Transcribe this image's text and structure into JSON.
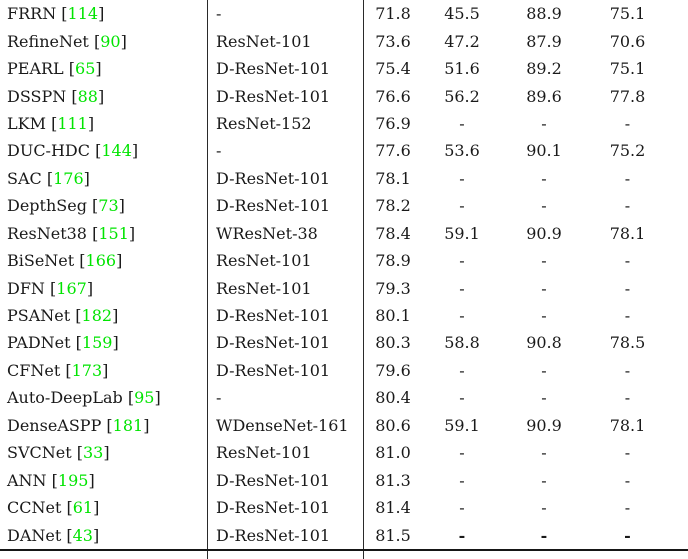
{
  "table": {
    "citation_open": "[",
    "citation_close": "]",
    "citation_color": "#00e400",
    "rule_color": "#161616",
    "rows": [
      {
        "method": "FRRN",
        "ref": "114",
        "backbone": "-",
        "values": [
          "71.8",
          "45.5",
          "88.9",
          "75.1"
        ],
        "bold_values": false
      },
      {
        "method": "RefineNet",
        "ref": "90",
        "backbone": "ResNet-101",
        "values": [
          "73.6",
          "47.2",
          "87.9",
          "70.6"
        ],
        "bold_values": false
      },
      {
        "method": "PEARL",
        "ref": "65",
        "backbone": "D-ResNet-101",
        "values": [
          "75.4",
          "51.6",
          "89.2",
          "75.1"
        ],
        "bold_values": false
      },
      {
        "method": "DSSPN",
        "ref": "88",
        "backbone": "D-ResNet-101",
        "values": [
          "76.6",
          "56.2",
          "89.6",
          "77.8"
        ],
        "bold_values": false
      },
      {
        "method": "LKM",
        "ref": "111",
        "backbone": "ResNet-152",
        "values": [
          "76.9",
          "-",
          "-",
          "-"
        ],
        "bold_values": false
      },
      {
        "method": "DUC-HDC",
        "ref": "144",
        "backbone": "-",
        "values": [
          "77.6",
          "53.6",
          "90.1",
          "75.2"
        ],
        "bold_values": false
      },
      {
        "method": "SAC",
        "ref": "176",
        "backbone": "D-ResNet-101",
        "values": [
          "78.1",
          "-",
          "-",
          "-"
        ],
        "bold_values": false
      },
      {
        "method": "DepthSeg",
        "ref": "73",
        "backbone": "D-ResNet-101",
        "values": [
          "78.2",
          "-",
          "-",
          "-"
        ],
        "bold_values": false
      },
      {
        "method": "ResNet38",
        "ref": "151",
        "backbone": "WResNet-38",
        "values": [
          "78.4",
          "59.1",
          "90.9",
          "78.1"
        ],
        "bold_values": false
      },
      {
        "method": "BiSeNet",
        "ref": "166",
        "backbone": "ResNet-101",
        "values": [
          "78.9",
          "-",
          "-",
          "-"
        ],
        "bold_values": false
      },
      {
        "method": "DFN",
        "ref": "167",
        "backbone": "ResNet-101",
        "values": [
          "79.3",
          "-",
          "-",
          "-"
        ],
        "bold_values": false
      },
      {
        "method": "PSANet",
        "ref": "182",
        "backbone": "D-ResNet-101",
        "values": [
          "80.1",
          "-",
          "-",
          "-"
        ],
        "bold_values": false
      },
      {
        "method": "PADNet",
        "ref": "159",
        "backbone": "D-ResNet-101",
        "values": [
          "80.3",
          "58.8",
          "90.8",
          "78.5"
        ],
        "bold_values": false
      },
      {
        "method": "CFNet",
        "ref": "173",
        "backbone": "D-ResNet-101",
        "values": [
          "79.6",
          "-",
          "-",
          "-"
        ],
        "bold_values": false
      },
      {
        "method": "Auto-DeepLab",
        "ref": "95",
        "backbone": "-",
        "values": [
          "80.4",
          "-",
          "-",
          "-"
        ],
        "bold_values": false
      },
      {
        "method": "DenseASPP",
        "ref": "181",
        "backbone": "WDenseNet-161",
        "values": [
          "80.6",
          "59.1",
          "90.9",
          "78.1"
        ],
        "bold_values": false
      },
      {
        "method": "SVCNet",
        "ref": "33",
        "backbone": "ResNet-101",
        "values": [
          "81.0",
          "-",
          "-",
          "-"
        ],
        "bold_values": false
      },
      {
        "method": "ANN",
        "ref": "195",
        "backbone": "D-ResNet-101",
        "values": [
          "81.3",
          "-",
          "-",
          "-"
        ],
        "bold_values": false
      },
      {
        "method": "CCNet",
        "ref": "61",
        "backbone": "D-ResNet-101",
        "values": [
          "81.4",
          "-",
          "-",
          "-"
        ],
        "bold_values": false
      },
      {
        "method": "DANet",
        "ref": "43",
        "backbone": "D-ResNet-101",
        "values": [
          "81.5",
          "-",
          "-",
          "-"
        ],
        "bold_values": true
      }
    ]
  }
}
